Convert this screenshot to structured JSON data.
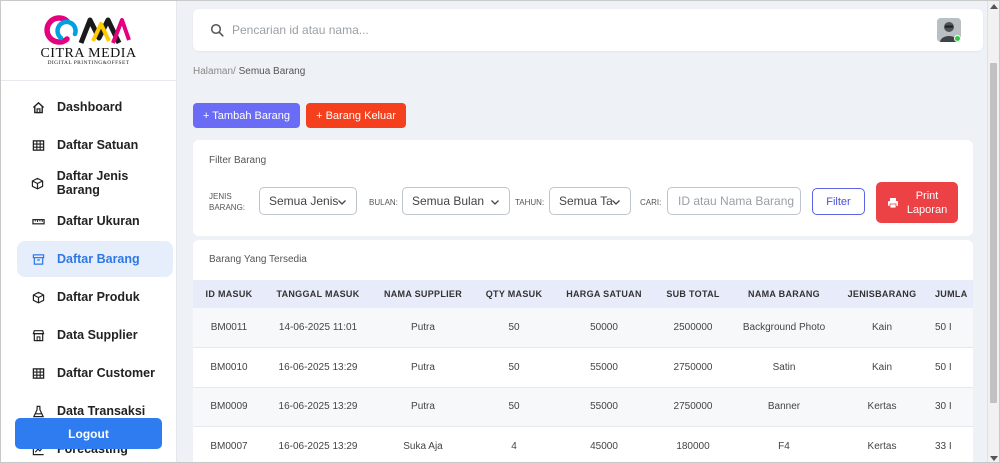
{
  "brand": {
    "name": "CITRA MEDIA",
    "tagline": "DIGITAL PRINTING&OFFSET",
    "colors": [
      "#e5007e",
      "#00a0e3",
      "#ffcc00",
      "#1a1a1a"
    ]
  },
  "sidebar": {
    "items": [
      {
        "label": "Dashboard",
        "icon": "home-icon"
      },
      {
        "label": "Daftar Satuan",
        "icon": "table-icon"
      },
      {
        "label": "Daftar Jenis Barang",
        "icon": "box-icon"
      },
      {
        "label": "Daftar Ukuran",
        "icon": "ruler-icon"
      },
      {
        "label": "Daftar Barang",
        "icon": "archive-icon",
        "active": true
      },
      {
        "label": "Daftar Produk",
        "icon": "box-icon"
      },
      {
        "label": "Data Supplier",
        "icon": "store-icon"
      },
      {
        "label": "Daftar Customer",
        "icon": "table-icon"
      },
      {
        "label": "Data Transaksi",
        "icon": "flask-icon"
      },
      {
        "label": "Forecasting",
        "icon": "chart-icon"
      }
    ],
    "logout_label": "Logout"
  },
  "search": {
    "placeholder": "Pencarian id atau nama..."
  },
  "breadcrumb": {
    "prefix": "Halaman/",
    "current": "Semua Barang"
  },
  "actions": {
    "add_label": "+ Tambah Barang",
    "out_label": "+ Barang Keluar"
  },
  "filter": {
    "title": "Filter Barang",
    "jenis_label_1": "JENIS",
    "jenis_label_2": "BARANG:",
    "jenis_value": "Semua Jenis",
    "bulan_label": "BULAN:",
    "bulan_value": "Semua Bulan",
    "tahun_label": "TAHUN:",
    "tahun_value": "Semua Ta",
    "cari_label": "CARI:",
    "cari_placeholder": "ID atau Nama Barang",
    "filter_button": "Filter",
    "print_line1": "Print",
    "print_line2": "Laporan"
  },
  "table": {
    "title": "Barang Yang Tersedia",
    "columns": [
      "ID MASUK",
      "TANGGAL MASUK",
      "NAMA SUPPLIER",
      "QTY MASUK",
      "HARGA SATUAN",
      "SUB TOTAL",
      "NAMA BARANG",
      "JENISBARANG",
      "JUMLA"
    ],
    "rows": [
      [
        "BM0011",
        "14-06-2025 11:01",
        "Putra",
        "50",
        "50000",
        "2500000",
        "Background Photo",
        "Kain",
        "50 I"
      ],
      [
        "BM0010",
        "16-06-2025 13:29",
        "Putra",
        "50",
        "55000",
        "2750000",
        "Satin",
        "Kain",
        "50 I"
      ],
      [
        "BM0009",
        "16-06-2025 13:29",
        "Putra",
        "50",
        "55000",
        "2750000",
        "Banner",
        "Kertas",
        "30 I"
      ],
      [
        "BM0007",
        "16-06-2025 13:29",
        "Suka Aja",
        "4",
        "45000",
        "180000",
        "F4",
        "Kertas",
        "33 I"
      ]
    ]
  }
}
